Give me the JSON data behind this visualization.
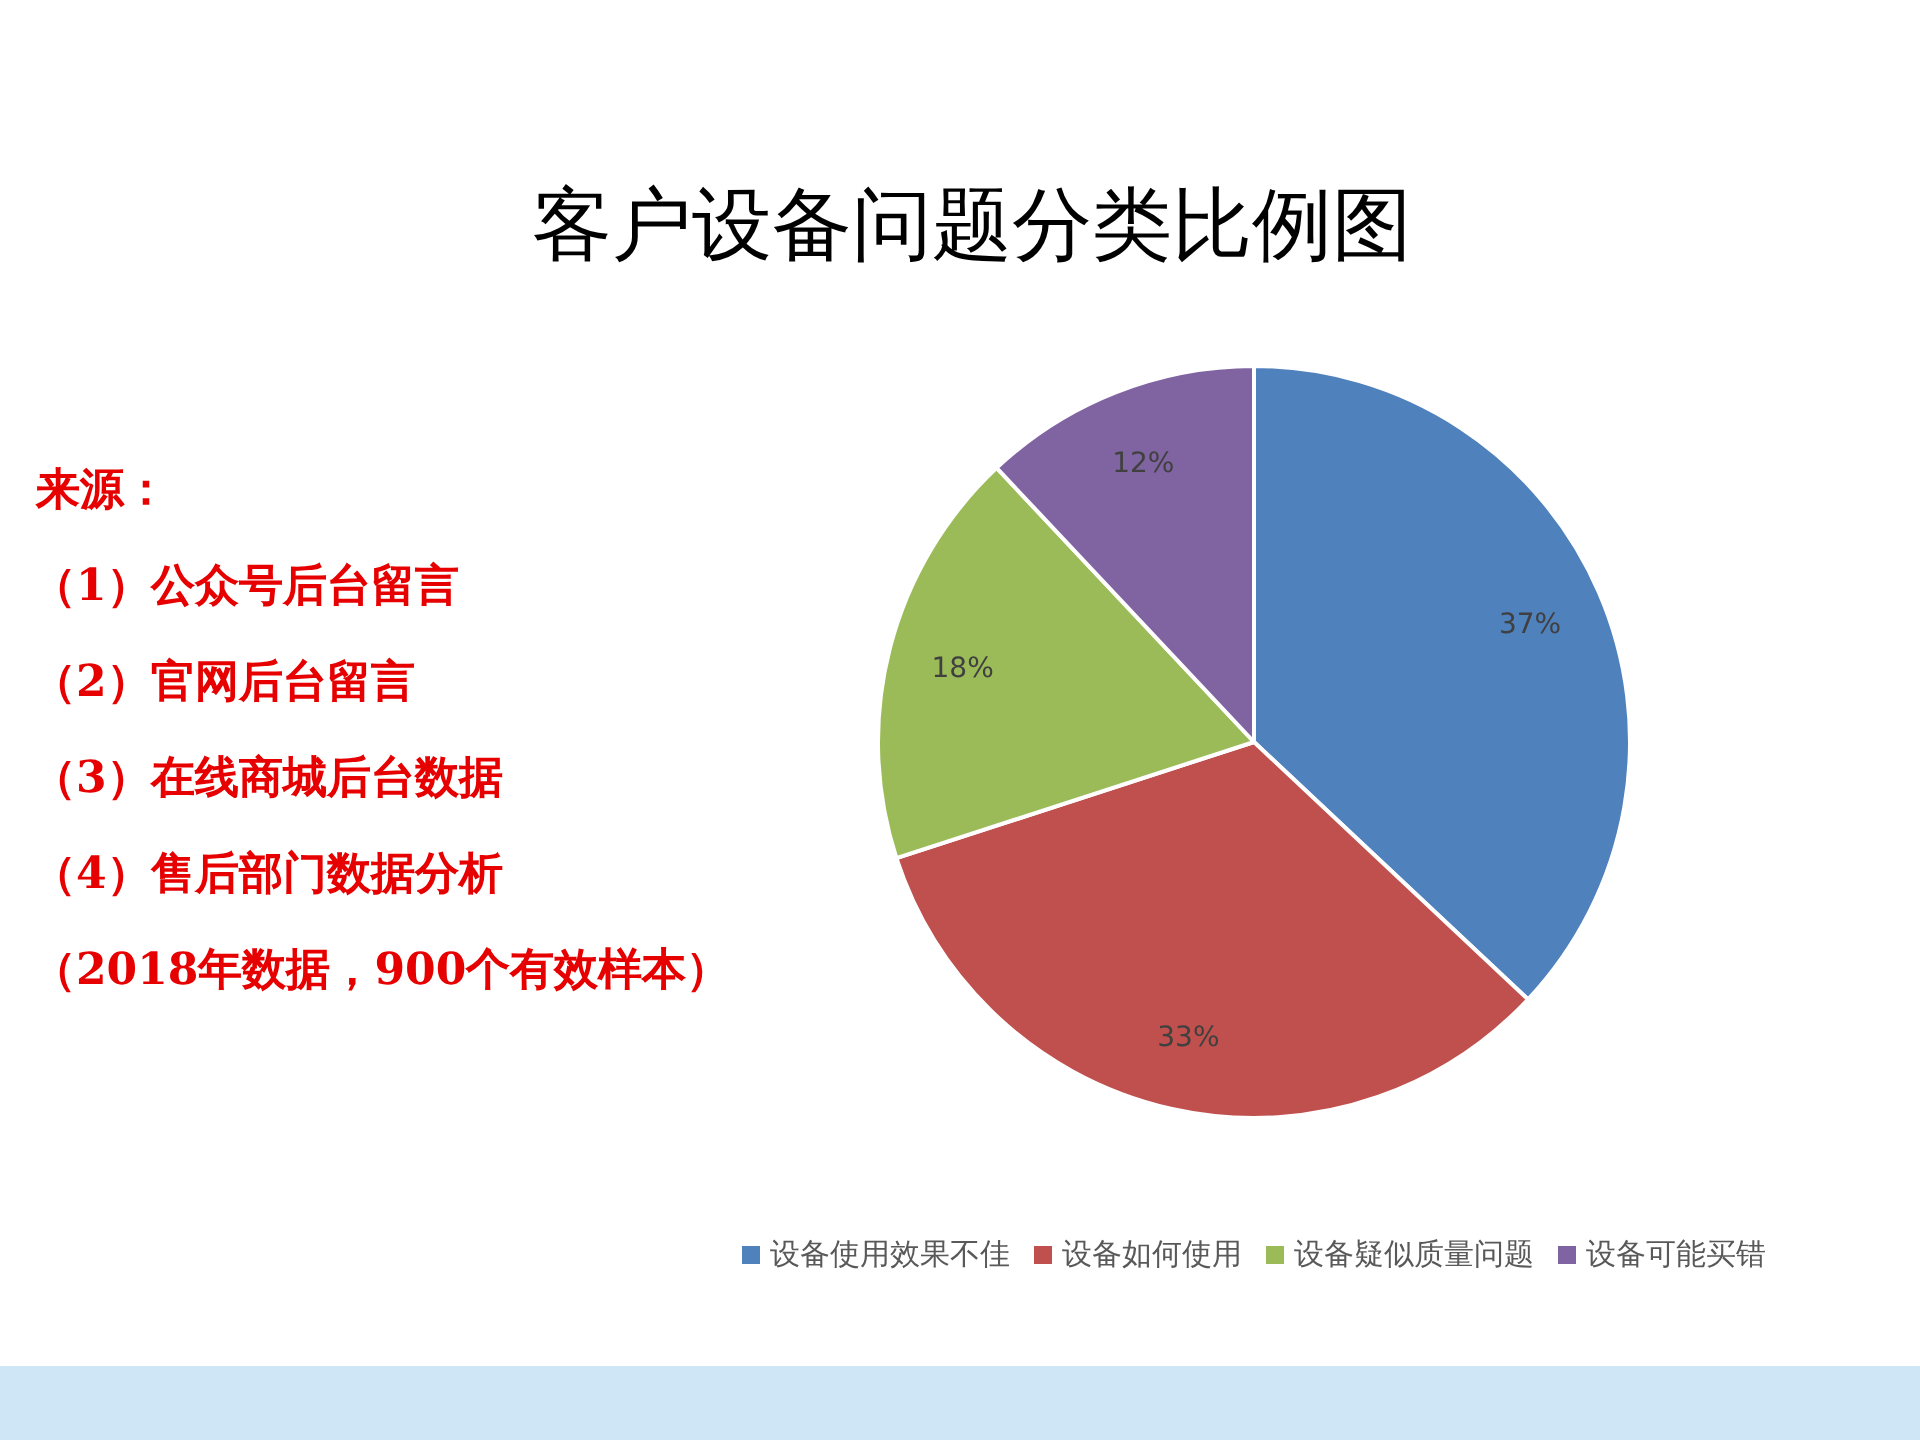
{
  "chart_data": {
    "type": "pie",
    "title": "客户设备问题分类比例图",
    "categories": [
      "设备使用效果不佳",
      "设备如何使用",
      "设备疑似质量问题",
      "设备可能买错"
    ],
    "values": [
      37,
      33,
      18,
      12
    ],
    "colors": [
      "#4f81bd",
      "#c0504d",
      "#9bbb59",
      "#8064a2"
    ],
    "value_labels": [
      "37%",
      "33%",
      "18%",
      "12%"
    ],
    "legend": "bottom",
    "annotations": [
      "来源：",
      "（1）公众号后台留言",
      "（2）官网后台留言",
      "（3）在线商城后台数据",
      "（4）售后部门数据分析",
      "（2018年数据，900个有效样本）"
    ]
  }
}
